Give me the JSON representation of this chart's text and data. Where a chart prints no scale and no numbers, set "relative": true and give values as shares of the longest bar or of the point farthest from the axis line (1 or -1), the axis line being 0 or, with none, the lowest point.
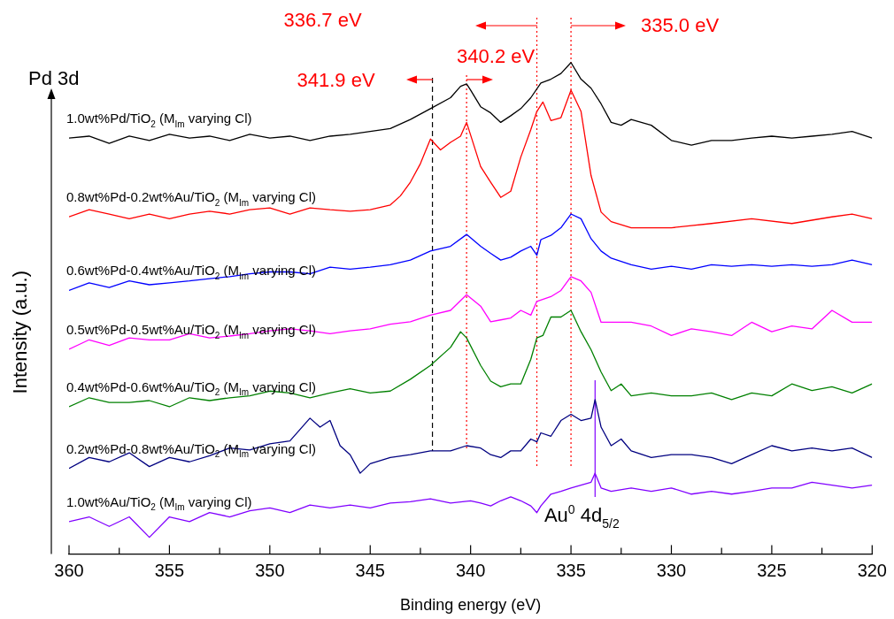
{
  "chart_data": {
    "type": "line",
    "xlabel": "Binding energy (eV)",
    "ylabel": "Intensity (a.u.)",
    "relative": true,
    "xlim": [
      360,
      320
    ],
    "xticks": [
      360,
      {
        "value": 357.5,
        "label": null
      },
      355,
      {
        "value": 352.5,
        "label": null
      },
      350,
      {
        "value": 347.5,
        "label": null
      },
      345,
      {
        "value": 342.5,
        "label": null
      },
      340,
      {
        "value": 337.5,
        "label": null
      },
      335,
      {
        "value": 332.5,
        "label": null
      },
      330,
      {
        "value": 327.5,
        "label": null
      },
      325,
      {
        "value": 322.5,
        "label": null
      },
      320
    ],
    "marker": "none",
    "line_style": "solid",
    "grid": false,
    "annotations": [
      "Pd 3d"
    ],
    "ref_lines": [
      {
        "axis": "x",
        "value": 341.9,
        "label": "341.9 eV",
        "color": "#000000",
        "line_style": "dashed"
      },
      {
        "axis": "x",
        "value": 340.2,
        "label": "340.2 eV",
        "color": "#ff0000",
        "line_style": "dotted"
      },
      {
        "axis": "x",
        "value": 336.7,
        "label": "336.7 eV",
        "color": "#ff0000",
        "line_style": "dotted"
      },
      {
        "axis": "x",
        "value": 335.0,
        "label": "335.0 eV",
        "color": "#ff0000",
        "line_style": "dotted"
      },
      {
        "axis": "x",
        "value": 333.8,
        "label": "Au$^{0}$ 4d$_{5/2}$",
        "color": "#8000ff",
        "line_style": "solid"
      }
    ],
    "series": [
      {
        "name": "1.0wt%Pd/TiO$_{2}$ (M$_{Im}$ varying Cl)",
        "color": "#000000",
        "x": [
          360,
          359,
          358,
          357,
          356,
          355,
          354,
          353,
          352,
          351,
          350,
          349,
          348,
          347,
          346,
          345,
          344,
          343,
          342,
          341,
          340.5,
          340.2,
          340,
          339.5,
          339,
          338.5,
          338,
          337.5,
          337,
          336.5,
          336,
          335.5,
          335,
          334.5,
          334,
          333.5,
          333,
          332.5,
          332,
          331,
          330,
          329,
          328,
          327,
          326,
          325,
          324,
          323,
          322,
          321,
          320
        ],
        "values": [
          0.841,
          0.845,
          0.83,
          0.845,
          0.836,
          0.849,
          0.841,
          0.845,
          0.836,
          0.849,
          0.841,
          0.845,
          0.836,
          0.845,
          0.849,
          0.855,
          0.861,
          0.88,
          0.903,
          0.926,
          0.95,
          0.955,
          0.942,
          0.907,
          0.894,
          0.874,
          0.888,
          0.903,
          0.926,
          0.957,
          0.965,
          0.977,
          1,
          0.965,
          0.946,
          0.913,
          0.874,
          0.868,
          0.88,
          0.868,
          0.836,
          0.826,
          0.836,
          0.836,
          0.841,
          0.845,
          0.841,
          0.845,
          0.849,
          0.855,
          0.841
        ]
      },
      {
        "name": "0.8wt%Pd-0.2wt%Au/TiO$_{2}$ (M$_{Im}$ varying Cl)",
        "color": "#ff0000",
        "x": [
          360,
          359,
          358,
          357,
          356,
          355,
          354,
          353,
          352,
          351,
          350,
          349,
          348,
          347,
          346,
          345,
          344,
          343.5,
          343,
          342.5,
          342,
          341.5,
          341,
          340.5,
          340.2,
          339.5,
          339,
          338.5,
          338,
          337.5,
          337,
          336.7,
          336.4,
          336,
          335.5,
          335,
          334.5,
          334,
          333.5,
          333,
          332,
          330,
          328,
          326,
          324,
          322,
          321,
          320
        ],
        "values": [
          0.675,
          0.69,
          0.681,
          0.671,
          0.681,
          0.671,
          0.681,
          0.687,
          0.681,
          0.69,
          0.694,
          0.681,
          0.694,
          0.69,
          0.687,
          0.69,
          0.7,
          0.719,
          0.748,
          0.787,
          0.839,
          0.816,
          0.832,
          0.845,
          0.874,
          0.781,
          0.748,
          0.716,
          0.729,
          0.801,
          0.859,
          0.897,
          0.917,
          0.878,
          0.884,
          0.942,
          0.897,
          0.762,
          0.685,
          0.665,
          0.652,
          0.652,
          0.661,
          0.671,
          0.661,
          0.675,
          0.681,
          0.671
        ]
      },
      {
        "name": "0.6wt%Pd-0.4wt%Au/TiO$_{2}$ (M$_{Im}$ varying Cl)",
        "color": "#0000ff",
        "x": [
          360,
          359,
          358,
          357,
          356,
          355,
          354,
          353,
          352,
          351,
          350,
          349,
          348,
          347,
          346,
          345,
          344,
          343,
          342,
          341,
          340.2,
          339.5,
          339,
          338.5,
          338,
          337.5,
          337,
          336.7,
          336.5,
          336,
          335.5,
          335,
          334.5,
          334,
          333.5,
          333,
          332,
          331,
          330,
          329,
          328,
          327,
          326,
          325,
          324,
          323,
          322,
          321,
          320
        ],
        "values": [
          0.52,
          0.536,
          0.526,
          0.54,
          0.532,
          0.536,
          0.54,
          0.545,
          0.549,
          0.555,
          0.559,
          0.559,
          0.555,
          0.569,
          0.565,
          0.569,
          0.574,
          0.584,
          0.603,
          0.613,
          0.638,
          0.613,
          0.598,
          0.584,
          0.59,
          0.603,
          0.613,
          0.594,
          0.627,
          0.636,
          0.652,
          0.681,
          0.671,
          0.629,
          0.603,
          0.588,
          0.574,
          0.565,
          0.571,
          0.565,
          0.574,
          0.571,
          0.574,
          0.571,
          0.574,
          0.571,
          0.574,
          0.584,
          0.574
        ]
      },
      {
        "name": "0.5wt%Pd-0.5wt%Au/TiO$_{2}$ (M$_{Im}$ varying Cl)",
        "color": "#ff00ff",
        "x": [
          360,
          359,
          358,
          357,
          356,
          355,
          354,
          353,
          352,
          351,
          350,
          349,
          348,
          347,
          346,
          345,
          344,
          343,
          342,
          341,
          340.2,
          339.5,
          339,
          338.5,
          338,
          337.5,
          337,
          336.7,
          336,
          335.5,
          335,
          334.5,
          334,
          333.5,
          333,
          332,
          331,
          330,
          329,
          328,
          327,
          326,
          325,
          324,
          323,
          322,
          321,
          320
        ],
        "values": [
          0.396,
          0.416,
          0.404,
          0.42,
          0.416,
          0.416,
          0.429,
          0.42,
          0.424,
          0.429,
          0.435,
          0.439,
          0.435,
          0.429,
          0.435,
          0.439,
          0.449,
          0.454,
          0.468,
          0.478,
          0.511,
          0.487,
          0.454,
          0.458,
          0.462,
          0.478,
          0.468,
          0.497,
          0.507,
          0.52,
          0.549,
          0.54,
          0.516,
          0.453,
          0.453,
          0.453,
          0.445,
          0.425,
          0.439,
          0.433,
          0.425,
          0.453,
          0.433,
          0.445,
          0.439,
          0.478,
          0.453,
          0.453
        ]
      },
      {
        "name": "0.4wt%Pd-0.6wt%Au/TiO$_{2}$ (M$_{Im}$ varying Cl)",
        "color": "#008000",
        "x": [
          360,
          359,
          358,
          357,
          356,
          355,
          354,
          353,
          352,
          351,
          350,
          349,
          348,
          347,
          346,
          345,
          344,
          343,
          342,
          341,
          340.5,
          340.2,
          339.5,
          339,
          338.5,
          338,
          337.5,
          337,
          336.7,
          336.4,
          336,
          335.5,
          335,
          334.5,
          334,
          333.5,
          333,
          332.5,
          332,
          331,
          330,
          329,
          328,
          327,
          326,
          325,
          324,
          323,
          322,
          321,
          320
        ],
        "values": [
          0.275,
          0.294,
          0.284,
          0.284,
          0.288,
          0.275,
          0.294,
          0.288,
          0.294,
          0.298,
          0.308,
          0.304,
          0.294,
          0.304,
          0.313,
          0.304,
          0.308,
          0.333,
          0.362,
          0.4,
          0.433,
          0.42,
          0.362,
          0.329,
          0.317,
          0.323,
          0.323,
          0.375,
          0.42,
          0.425,
          0.464,
          0.464,
          0.478,
          0.433,
          0.395,
          0.348,
          0.309,
          0.323,
          0.298,
          0.304,
          0.298,
          0.298,
          0.304,
          0.29,
          0.304,
          0.298,
          0.323,
          0.309,
          0.317,
          0.304,
          0.323
        ]
      },
      {
        "name": "0.2wt%Pd-0.8wt%Au/TiO$_{2}$ (M$_{Im}$ varying Cl)",
        "color": "#000080",
        "x": [
          360,
          359,
          358,
          357,
          356,
          355,
          354,
          353,
          352,
          351,
          350,
          349,
          348,
          347.5,
          347,
          346.5,
          346,
          345.5,
          345,
          344,
          343,
          342,
          341,
          340.2,
          339.5,
          339,
          338.5,
          338,
          337.5,
          337,
          336.7,
          336.5,
          336,
          335.5,
          335,
          334.5,
          334,
          333.8,
          333.5,
          333,
          332.5,
          332,
          331,
          330,
          329,
          328,
          327,
          326,
          325,
          324,
          323,
          322,
          321,
          320
        ],
        "values": [
          0.145,
          0.168,
          0.159,
          0.178,
          0.149,
          0.168,
          0.159,
          0.172,
          0.188,
          0.184,
          0.197,
          0.203,
          0.251,
          0.232,
          0.246,
          0.193,
          0.174,
          0.135,
          0.155,
          0.168,
          0.174,
          0.182,
          0.182,
          0.193,
          0.188,
          0.174,
          0.168,
          0.182,
          0.182,
          0.207,
          0.201,
          0.22,
          0.213,
          0.246,
          0.259,
          0.246,
          0.251,
          0.29,
          0.232,
          0.193,
          0.207,
          0.182,
          0.168,
          0.174,
          0.174,
          0.168,
          0.155,
          0.174,
          0.193,
          0.182,
          0.188,
          0.182,
          0.188,
          0.168
        ]
      },
      {
        "name": "1.0wt%Au/TiO$_{2}$ (M$_{Im}$ varying Cl)",
        "color": "#8000ff",
        "x": [
          360,
          359,
          358,
          357,
          356,
          355,
          354,
          353,
          352,
          351,
          350,
          349,
          348,
          347,
          346,
          345,
          344,
          343,
          342,
          341,
          340,
          339.5,
          339,
          338.5,
          338,
          337.5,
          337,
          336.7,
          336.5,
          336,
          335.5,
          335,
          334.5,
          334,
          333.8,
          333.5,
          333,
          332,
          331,
          330,
          329,
          328,
          327,
          326,
          325,
          324,
          323,
          322,
          321,
          320
        ],
        "values": [
          0.033,
          0.043,
          0.023,
          0.043,
          0,
          0.043,
          0.033,
          0.052,
          0.043,
          0.056,
          0.062,
          0.052,
          0.068,
          0.062,
          0.068,
          0.062,
          0.072,
          0.075,
          0.081,
          0.072,
          0.077,
          0.072,
          0.066,
          0.077,
          0.085,
          0.077,
          0.066,
          0.052,
          0.066,
          0.091,
          0.097,
          0.104,
          0.11,
          0.116,
          0.135,
          0.104,
          0.097,
          0.104,
          0.097,
          0.104,
          0.091,
          0.097,
          0.091,
          0.097,
          0.104,
          0.104,
          0.116,
          0.11,
          0.104,
          0.11
        ]
      }
    ]
  }
}
